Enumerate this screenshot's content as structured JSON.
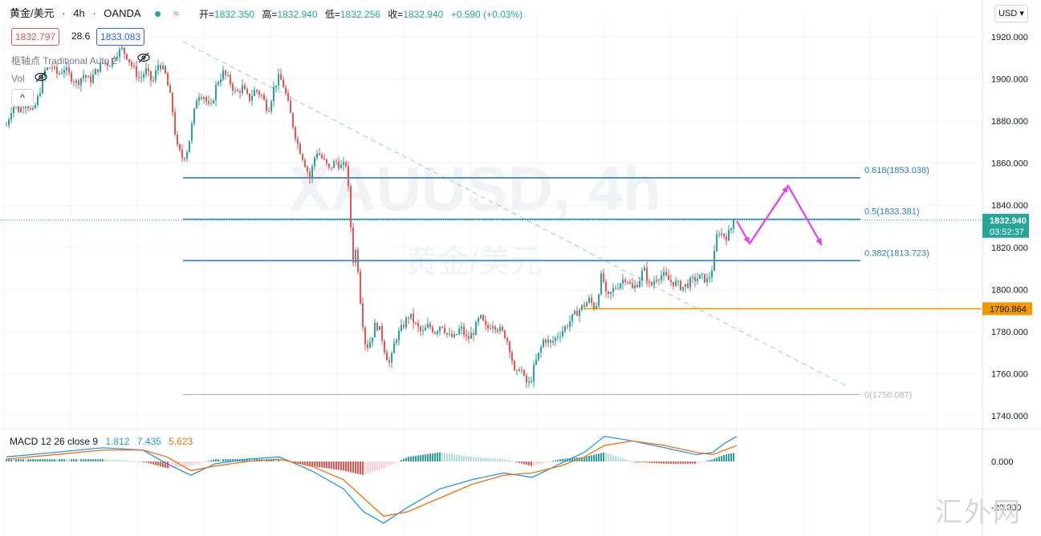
{
  "header": {
    "symbol": "黄金/美元",
    "interval": "4h",
    "source": "OANDA",
    "wave_icon": "≈",
    "ohlc": [
      {
        "k": "开=",
        "v": "1832.350"
      },
      {
        "k": "高=",
        "v": "1832.940"
      },
      {
        "k": "低=",
        "v": "1832.256"
      },
      {
        "k": "收=",
        "v": "1832.940"
      },
      {
        "k": "",
        "v": "+0.590 (+0.03%)"
      }
    ],
    "bid": "1832.797",
    "spread": "28.6",
    "ask": "1833.083",
    "indicator_pivot": "枢轴点 Traditional Auto 2",
    "indicator_vol": "Vol",
    "collapse_label": "^",
    "currency": "USD ▾"
  },
  "watermark": {
    "big": "XAUUSD, 4h",
    "small": "黄金/美元",
    "site": "汇外网"
  },
  "macd": {
    "label": "MACD 12 26 close 9",
    "hist": "1.812",
    "macd": "7.435",
    "signal": "5.623",
    "colors": {
      "hist_label": "#26a69a",
      "macd_line": "#2196f3",
      "signal_line": "#ff6d00"
    }
  },
  "colors": {
    "up": "#26a69a",
    "down": "#ef5350",
    "fib": "#2a7fbf",
    "support": "#f29900",
    "arrow": "#e040fb",
    "trend": "#b0bec5",
    "zero_fib": "#b2b5be"
  },
  "chart_data": [
    {
      "type": "candlestick",
      "ylim": [
        1735,
        1925
      ],
      "y_ticks": [
        "1920.000",
        "1900.000",
        "1880.000",
        "1860.000",
        "1840.000",
        "1820.000",
        "1800.000",
        "1780.000",
        "1760.000",
        "1740.000"
      ],
      "y_tick_values": [
        1920,
        1900,
        1880,
        1860,
        1840,
        1820,
        1800,
        1780,
        1760,
        1740
      ],
      "current_price": {
        "value": 1832.94,
        "label": "1832.940",
        "countdown": "03:52:37"
      },
      "support_level": {
        "value": 1790.864,
        "label": "1790.864"
      },
      "fib_levels": [
        {
          "value": 1853.038,
          "label": "0.618(1853.038)"
        },
        {
          "value": 1833.381,
          "label": "0.5(1833.381)"
        },
        {
          "value": 1813.723,
          "label": "0.382(1813.723)"
        },
        {
          "value": 1750.087,
          "label": "0(1750.087)"
        }
      ],
      "close_path": [
        [
          0,
          1878
        ],
        [
          8,
          1888
        ],
        [
          16,
          1885
        ],
        [
          24,
          1890
        ],
        [
          32,
          1883
        ],
        [
          40,
          1892
        ],
        [
          48,
          1904
        ],
        [
          56,
          1906
        ],
        [
          64,
          1902
        ],
        [
          72,
          1905
        ],
        [
          80,
          1901
        ],
        [
          88,
          1898
        ],
        [
          96,
          1902
        ],
        [
          104,
          1899
        ],
        [
          112,
          1904
        ],
        [
          120,
          1908
        ],
        [
          128,
          1907
        ],
        [
          136,
          1912
        ],
        [
          144,
          1914
        ],
        [
          150,
          1911
        ],
        [
          158,
          1905
        ],
        [
          166,
          1900
        ],
        [
          174,
          1904
        ],
        [
          182,
          1898
        ],
        [
          190,
          1908
        ],
        [
          198,
          1902
        ],
        [
          206,
          1888
        ],
        [
          212,
          1868
        ],
        [
          220,
          1862
        ],
        [
          226,
          1867
        ],
        [
          232,
          1880
        ],
        [
          238,
          1893
        ],
        [
          246,
          1892
        ],
        [
          254,
          1885
        ],
        [
          262,
          1898
        ],
        [
          270,
          1903
        ],
        [
          278,
          1899
        ],
        [
          286,
          1893
        ],
        [
          294,
          1896
        ],
        [
          302,
          1890
        ],
        [
          310,
          1895
        ],
        [
          318,
          1892
        ],
        [
          326,
          1885
        ],
        [
          334,
          1897
        ],
        [
          340,
          1901
        ],
        [
          346,
          1896
        ],
        [
          354,
          1883
        ],
        [
          362,
          1870
        ],
        [
          370,
          1862
        ],
        [
          378,
          1853
        ],
        [
          386,
          1866
        ],
        [
          394,
          1862
        ],
        [
          402,
          1857
        ],
        [
          410,
          1861
        ],
        [
          418,
          1858
        ],
        [
          424,
          1860
        ],
        [
          428,
          1835
        ],
        [
          432,
          1814
        ],
        [
          436,
          1820
        ],
        [
          442,
          1790
        ],
        [
          448,
          1772
        ],
        [
          454,
          1776
        ],
        [
          460,
          1784
        ],
        [
          466,
          1780
        ],
        [
          472,
          1770
        ],
        [
          478,
          1764
        ],
        [
          484,
          1776
        ],
        [
          490,
          1780
        ],
        [
          496,
          1784
        ],
        [
          502,
          1788
        ],
        [
          510,
          1783
        ],
        [
          518,
          1779
        ],
        [
          526,
          1783
        ],
        [
          534,
          1780
        ],
        [
          542,
          1784
        ],
        [
          550,
          1778
        ],
        [
          558,
          1777
        ],
        [
          566,
          1782
        ],
        [
          574,
          1776
        ],
        [
          582,
          1780
        ],
        [
          590,
          1787
        ],
        [
          598,
          1781
        ],
        [
          606,
          1784
        ],
        [
          614,
          1781
        ],
        [
          622,
          1778
        ],
        [
          628,
          1771
        ],
        [
          634,
          1758
        ],
        [
          640,
          1764
        ],
        [
          646,
          1756
        ],
        [
          652,
          1755
        ],
        [
          658,
          1764
        ],
        [
          664,
          1770
        ],
        [
          670,
          1777
        ],
        [
          678,
          1774
        ],
        [
          686,
          1778
        ],
        [
          694,
          1781
        ],
        [
          702,
          1785
        ],
        [
          710,
          1789
        ],
        [
          718,
          1792
        ],
        [
          726,
          1795
        ],
        [
          734,
          1791
        ],
        [
          742,
          1808
        ],
        [
          748,
          1795
        ],
        [
          756,
          1800
        ],
        [
          764,
          1803
        ],
        [
          772,
          1806
        ],
        [
          780,
          1800
        ],
        [
          788,
          1804
        ],
        [
          794,
          1810
        ],
        [
          802,
          1801
        ],
        [
          810,
          1806
        ],
        [
          818,
          1807
        ],
        [
          826,
          1804
        ],
        [
          834,
          1803
        ],
        [
          842,
          1801
        ],
        [
          850,
          1803
        ],
        [
          858,
          1805
        ],
        [
          866,
          1806
        ],
        [
          874,
          1804
        ],
        [
          880,
          1811
        ],
        [
          886,
          1828
        ],
        [
          892,
          1826
        ],
        [
          898,
          1825
        ],
        [
          904,
          1830
        ],
        [
          908,
          1832.94
        ]
      ],
      "macd_path": [
        [
          0,
          2
        ],
        [
          60,
          4
        ],
        [
          120,
          6
        ],
        [
          170,
          5
        ],
        [
          200,
          -1
        ],
        [
          230,
          -6
        ],
        [
          260,
          -1
        ],
        [
          300,
          1
        ],
        [
          340,
          2
        ],
        [
          380,
          -4
        ],
        [
          420,
          -12
        ],
        [
          445,
          -22
        ],
        [
          470,
          -27
        ],
        [
          500,
          -20
        ],
        [
          540,
          -12
        ],
        [
          580,
          -8
        ],
        [
          620,
          -5
        ],
        [
          655,
          -7
        ],
        [
          690,
          -1
        ],
        [
          720,
          4
        ],
        [
          745,
          11
        ],
        [
          780,
          9
        ],
        [
          820,
          6
        ],
        [
          860,
          3
        ],
        [
          880,
          4
        ],
        [
          895,
          8
        ],
        [
          910,
          11
        ]
      ],
      "signal_path": [
        [
          0,
          1
        ],
        [
          60,
          3
        ],
        [
          120,
          5
        ],
        [
          170,
          5
        ],
        [
          200,
          2
        ],
        [
          230,
          -4
        ],
        [
          260,
          -2
        ],
        [
          300,
          0
        ],
        [
          340,
          1
        ],
        [
          380,
          -2
        ],
        [
          420,
          -8
        ],
        [
          445,
          -16
        ],
        [
          470,
          -24
        ],
        [
          500,
          -22
        ],
        [
          540,
          -16
        ],
        [
          580,
          -10
        ],
        [
          620,
          -6
        ],
        [
          655,
          -5
        ],
        [
          690,
          -2
        ],
        [
          720,
          2
        ],
        [
          745,
          7
        ],
        [
          780,
          9
        ],
        [
          820,
          7
        ],
        [
          860,
          4
        ],
        [
          880,
          3
        ],
        [
          895,
          5
        ],
        [
          910,
          7
        ]
      ],
      "macd_ticks": [
        "0.000",
        "-20.000"
      ],
      "macd_tick_values": [
        0,
        -20
      ],
      "macd_ylim": [
        -30,
        14
      ]
    }
  ]
}
